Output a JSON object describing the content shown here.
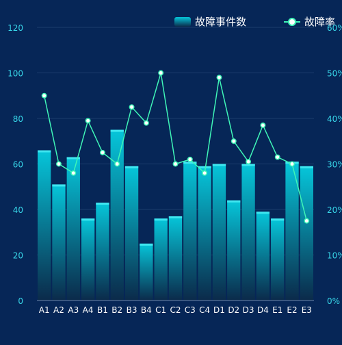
{
  "colors": {
    "background": "#062657",
    "bar_top": "#06c6da",
    "bar_bottom": "#0b2a4a",
    "bar_cap": "#3fe6f0",
    "line": "#3ff5b7",
    "marker_fill": "#ffffff",
    "left_axis_label": "#38d7e9",
    "right_axis_label": "#38d7e9",
    "category_label": "#ffffff",
    "legend_text": "#ffffff",
    "grid": "#1c3d6d"
  },
  "chart_data": {
    "type": "bar",
    "title": "",
    "legend_position": "top-right",
    "categories": [
      "A1",
      "A2",
      "A3",
      "A4",
      "B1",
      "B2",
      "B3",
      "B4",
      "C1",
      "C2",
      "C3",
      "C4",
      "D1",
      "D2",
      "D3",
      "D4",
      "E1",
      "E2",
      "E3"
    ],
    "series": [
      {
        "name": "故障事件数",
        "type": "bar",
        "axis": "left",
        "values": [
          66,
          51,
          63,
          36,
          43,
          75,
          59,
          25,
          36,
          37,
          61,
          59,
          60,
          44,
          60,
          39,
          36,
          61,
          59
        ]
      },
      {
        "name": "故障率",
        "type": "line",
        "axis": "right",
        "unit": "%",
        "values": [
          45,
          30,
          28,
          39.5,
          32.5,
          30,
          42.5,
          39,
          50,
          30,
          31,
          28,
          49,
          35,
          30.5,
          38.5,
          31.5,
          30,
          17.5
        ]
      }
    ],
    "y_left": {
      "min": 0,
      "max": 120,
      "ticks": [
        "0",
        "20",
        "40",
        "60",
        "80",
        "100",
        "120"
      ]
    },
    "y_right": {
      "min": 0,
      "max": 60,
      "ticks": [
        "0%",
        "10%",
        "20%",
        "30%",
        "40%",
        "50%",
        "60%"
      ]
    },
    "grid": true
  }
}
